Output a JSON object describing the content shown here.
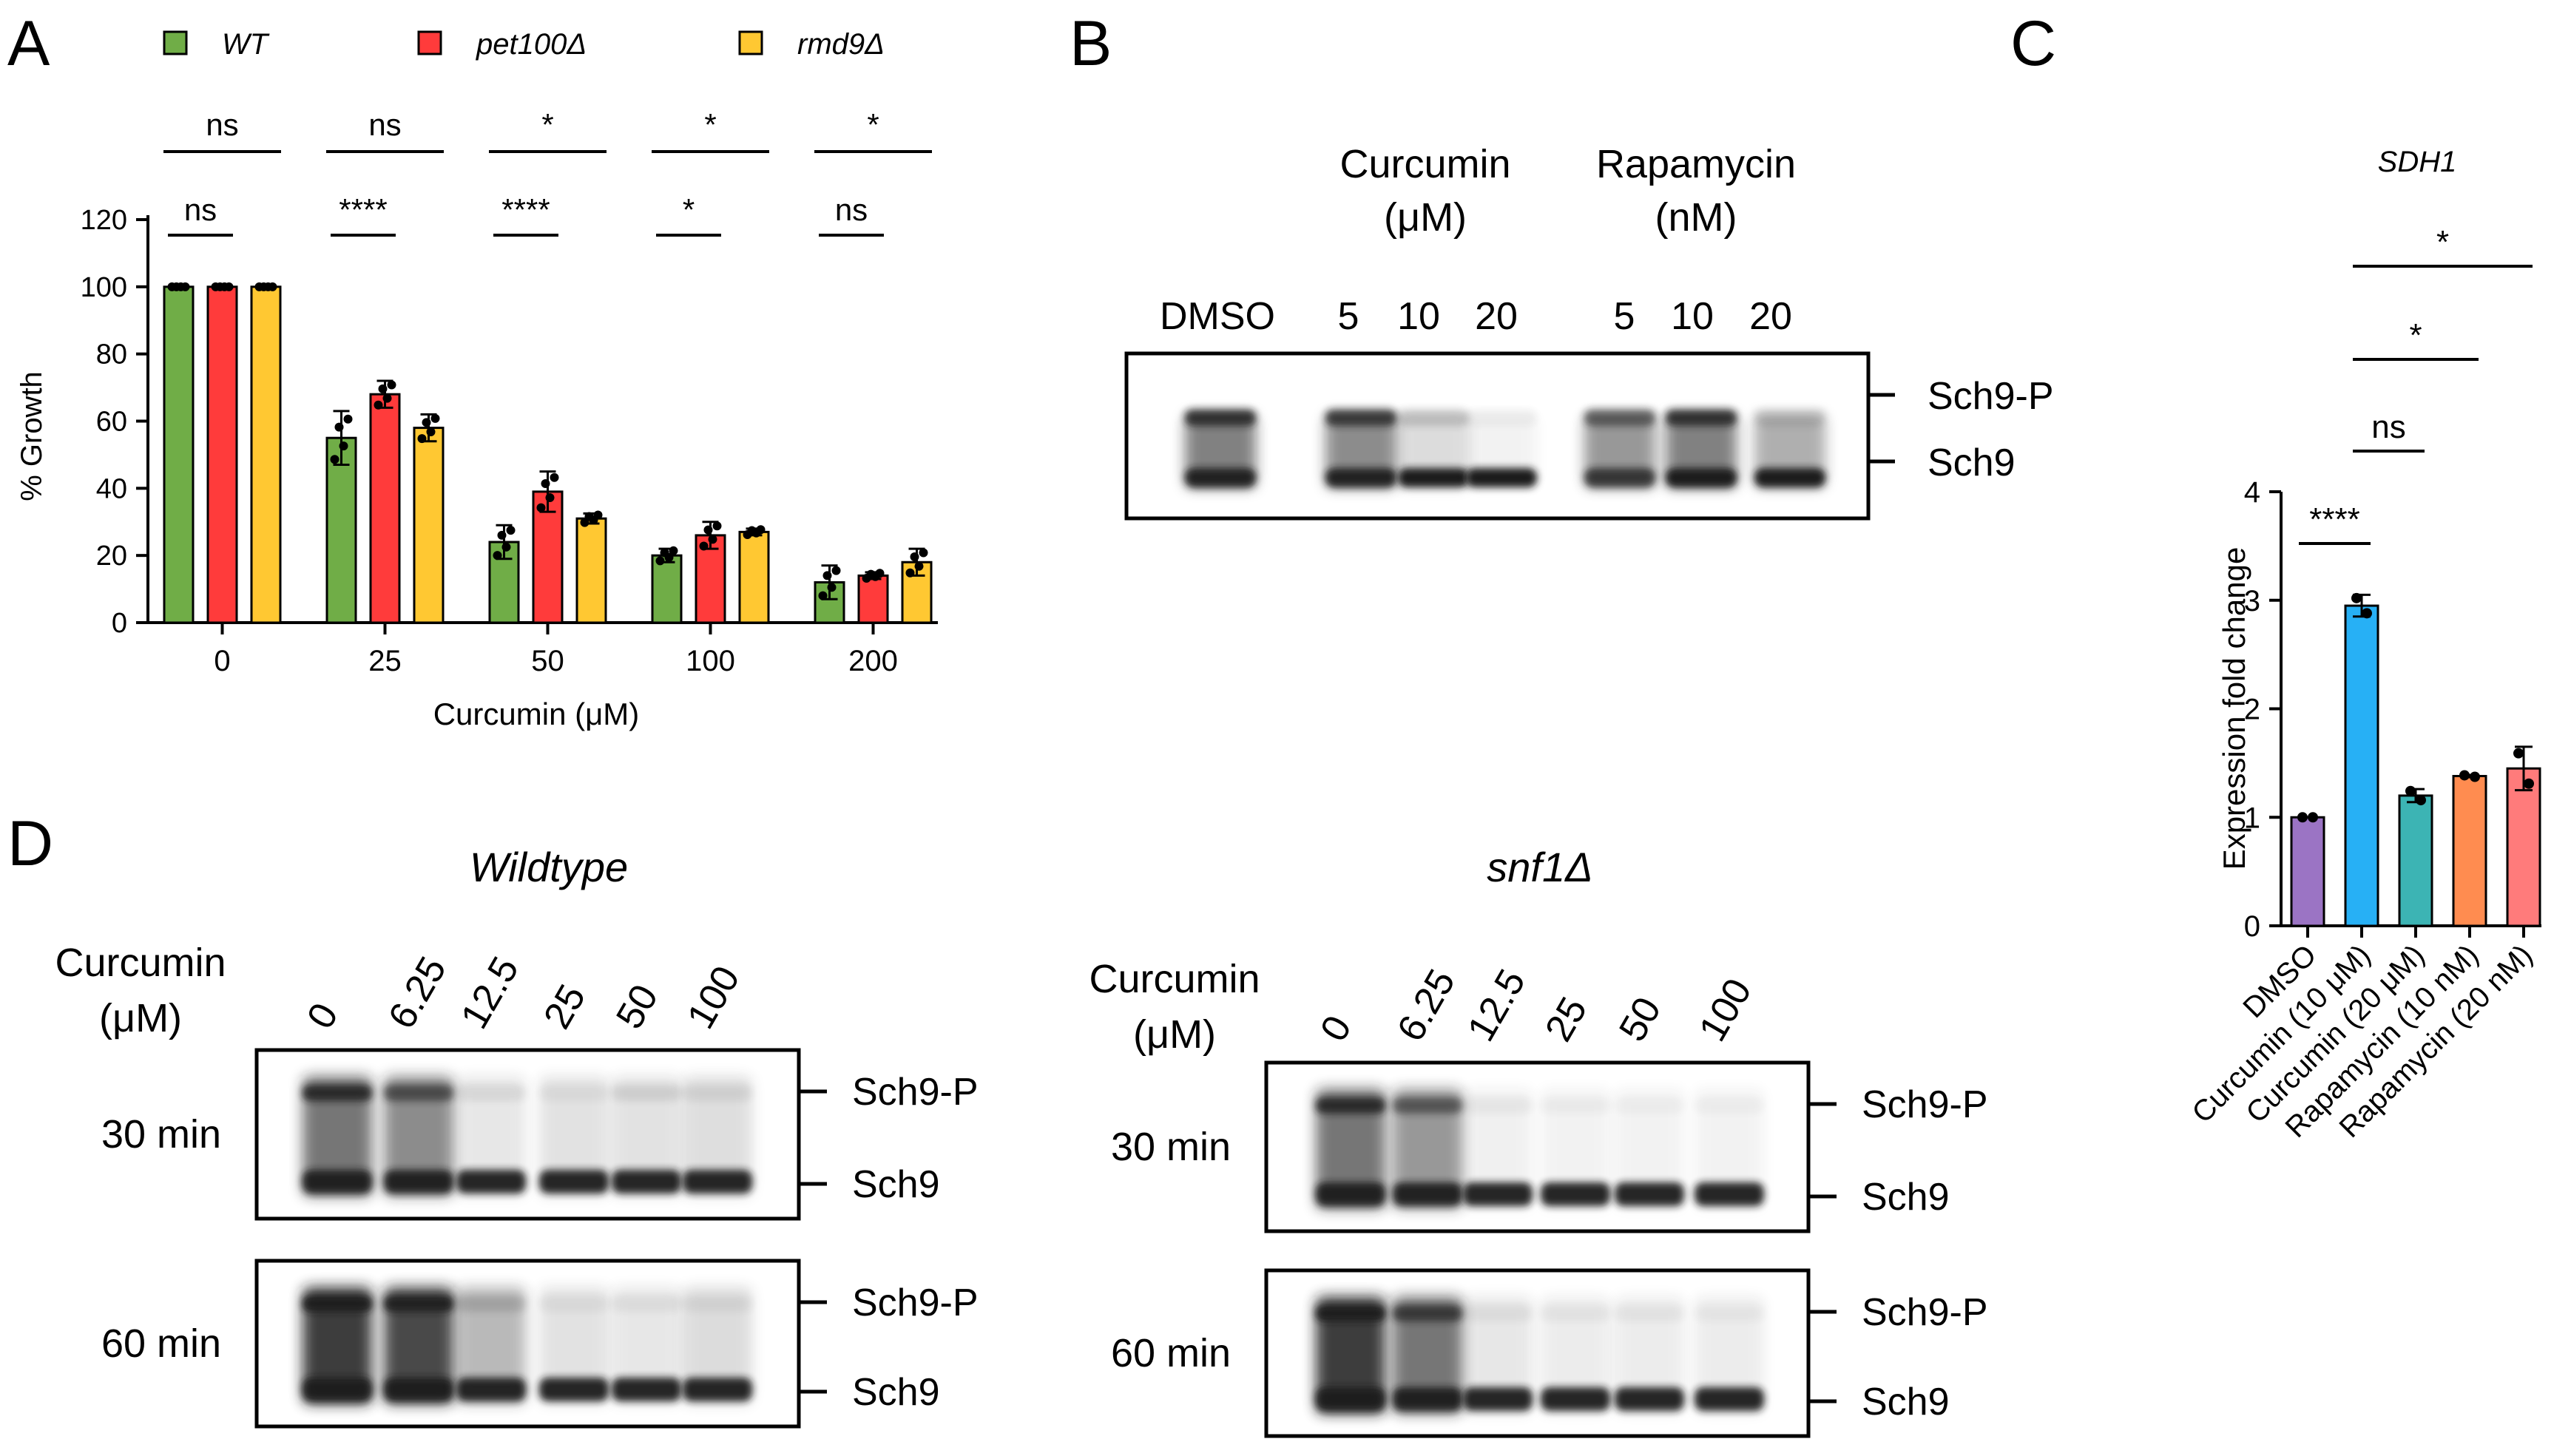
{
  "panel_letters": {
    "a": "A",
    "b": "B",
    "c": "C",
    "d": "D"
  },
  "colors": {
    "wt": "#70ad47",
    "pet100": "#ff3b3b",
    "rmd9": "#ffc832",
    "dmso": "#9b74c4",
    "cur10": "#27b0f5",
    "cur20": "#3cb4b4",
    "rap10": "#ff8c50",
    "rap20": "#ff7b7b",
    "axis": "#000000",
    "band": "#1a1a1a"
  },
  "chart_data": [
    {
      "panel": "A",
      "type": "bar",
      "categories": [
        "0",
        "25",
        "50",
        "100",
        "200"
      ],
      "series": [
        {
          "name": "WT",
          "values": [
            100,
            55,
            24,
            20,
            12
          ],
          "errors": [
            0,
            8,
            5,
            2,
            5
          ]
        },
        {
          "name": "pet100Δ",
          "values": [
            100,
            68,
            39,
            26,
            14
          ],
          "errors": [
            0,
            4,
            6,
            4,
            1
          ]
        },
        {
          "name": "rmd9Δ",
          "values": [
            100,
            58,
            31,
            27,
            18
          ],
          "errors": [
            0,
            4,
            1.5,
            1,
            4
          ]
        }
      ],
      "xlabel": "Curcumin (μM)",
      "ylabel": "% Growth",
      "ylim": [
        0,
        120
      ],
      "yticks": [
        "0",
        "20",
        "40",
        "60",
        "80",
        "100",
        "120"
      ],
      "legend_position": "top",
      "significance_overall": [
        "ns",
        "ns",
        "*",
        "*",
        "*"
      ],
      "significance_pair": [
        "ns",
        "****",
        "****",
        "*",
        "ns"
      ]
    },
    {
      "panel": "C",
      "type": "bar",
      "title": "SDH1",
      "categories": [
        "DMSO",
        "Curcumin (10 μM)",
        "Curcumin (20 μM)",
        "Rapamycin (10 nM)",
        "Rapamycin (20 nM)"
      ],
      "values": [
        1.0,
        2.95,
        1.2,
        1.38,
        1.45
      ],
      "errors": [
        0.0,
        0.1,
        0.06,
        0.01,
        0.2
      ],
      "ylabel": "Expression fold change",
      "ylim": [
        0,
        4
      ],
      "yticks": [
        "0",
        "1",
        "2",
        "3",
        "4"
      ],
      "significance": [
        {
          "from": 0,
          "to": 1,
          "label": "****"
        },
        {
          "from": 1,
          "to": 2,
          "label": "ns"
        },
        {
          "from": 1,
          "to": 3,
          "label": "*"
        },
        {
          "from": 1,
          "to": 4,
          "label": "*"
        }
      ]
    }
  ],
  "panel_b": {
    "group_curcumin": [
      "Curcumin",
      "(μM)"
    ],
    "group_rapamycin": [
      "Rapamycin",
      "(nM)"
    ],
    "lanes": [
      "DMSO",
      "5",
      "10",
      "20",
      "5",
      "10",
      "20"
    ],
    "band_labels": [
      "Sch9-P",
      "Sch9"
    ]
  },
  "panel_d": {
    "wildtype": {
      "title": "Wildtype",
      "row_title": [
        "Curcumin",
        "(μM)"
      ],
      "concentrations": [
        "0",
        "6.25",
        "12.5",
        "25",
        "50",
        "100"
      ],
      "timepoints": [
        "30 min",
        "60 min"
      ],
      "band_labels": [
        "Sch9-P",
        "Sch9"
      ]
    },
    "snf1": {
      "title": "snf1Δ",
      "row_title": [
        "Curcumin",
        "(μM)"
      ],
      "concentrations": [
        "0",
        "6.25",
        "12.5",
        "25",
        "50",
        "100"
      ],
      "timepoints": [
        "30 min",
        "60 min"
      ],
      "band_labels": [
        "Sch9-P",
        "Sch9"
      ]
    }
  }
}
